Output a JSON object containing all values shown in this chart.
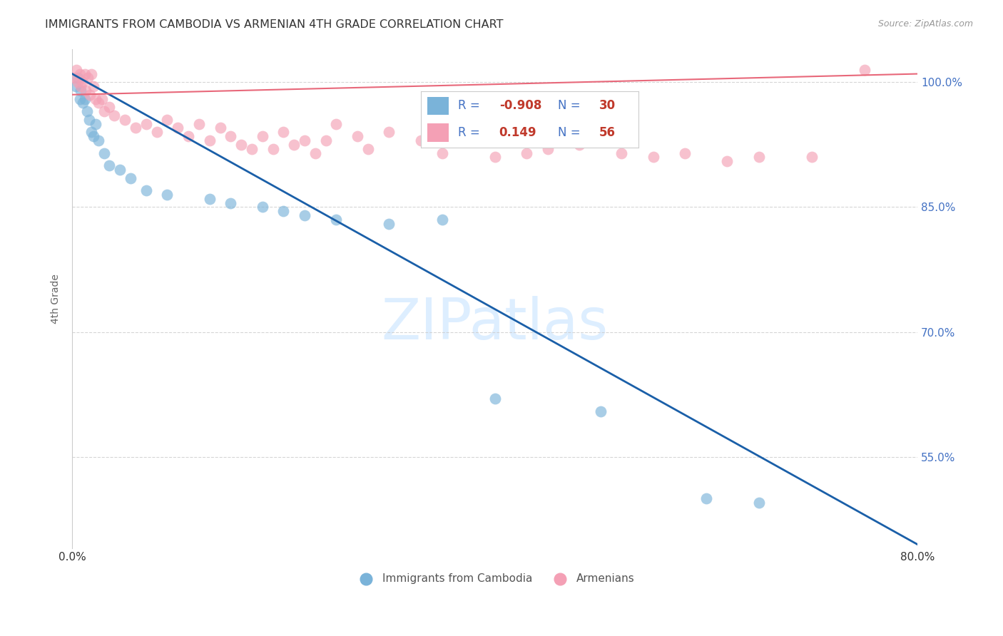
{
  "title": "IMMIGRANTS FROM CAMBODIA VS ARMENIAN 4TH GRADE CORRELATION CHART",
  "source": "Source: ZipAtlas.com",
  "ylabel": "4th Grade",
  "xlim": [
    0.0,
    80.0
  ],
  "ylim": [
    44.0,
    104.0
  ],
  "ytick_positions": [
    55.0,
    70.0,
    85.0,
    100.0
  ],
  "ytick_labels": [
    "55.0%",
    "70.0%",
    "85.0%",
    "100.0%"
  ],
  "xtick_positions": [
    0.0,
    10.0,
    20.0,
    30.0,
    40.0,
    50.0,
    60.0,
    70.0,
    80.0
  ],
  "xtick_labels": [
    "0.0%",
    "",
    "",
    "",
    "",
    "",
    "",
    "",
    "80.0%"
  ],
  "blue_color": "#7ab3d9",
  "pink_color": "#f4a0b5",
  "blue_line_color": "#1a5fa8",
  "pink_line_color": "#e8687a",
  "blue_scatter_x": [
    0.3,
    0.5,
    0.7,
    0.8,
    1.0,
    1.2,
    1.4,
    1.6,
    1.8,
    2.0,
    2.2,
    2.5,
    3.0,
    3.5,
    4.5,
    5.5,
    7.0,
    9.0,
    13.0,
    15.0,
    18.0,
    20.0,
    22.0,
    25.0,
    30.0,
    35.0,
    40.0,
    50.0,
    60.0,
    65.0
  ],
  "blue_scatter_y": [
    99.5,
    100.5,
    98.0,
    99.0,
    97.5,
    98.0,
    96.5,
    95.5,
    94.0,
    93.5,
    95.0,
    93.0,
    91.5,
    90.0,
    89.5,
    88.5,
    87.0,
    86.5,
    86.0,
    85.5,
    85.0,
    84.5,
    84.0,
    83.5,
    83.0,
    83.5,
    62.0,
    60.5,
    50.0,
    49.5
  ],
  "pink_scatter_x": [
    0.2,
    0.4,
    0.5,
    0.7,
    0.8,
    1.0,
    1.2,
    1.3,
    1.5,
    1.7,
    1.8,
    2.0,
    2.2,
    2.5,
    2.8,
    3.0,
    3.5,
    4.0,
    5.0,
    6.0,
    7.0,
    8.0,
    9.0,
    10.0,
    11.0,
    12.0,
    13.0,
    14.0,
    15.0,
    16.0,
    17.0,
    18.0,
    19.0,
    20.0,
    21.0,
    22.0,
    23.0,
    24.0,
    25.0,
    27.0,
    28.0,
    30.0,
    33.0,
    35.0,
    37.0,
    40.0,
    43.0,
    45.0,
    48.0,
    52.0,
    55.0,
    58.0,
    62.0,
    65.0,
    70.0,
    75.0
  ],
  "pink_scatter_y": [
    100.5,
    101.5,
    100.0,
    101.0,
    99.5,
    100.0,
    101.0,
    99.0,
    100.5,
    98.5,
    101.0,
    99.5,
    98.0,
    97.5,
    98.0,
    96.5,
    97.0,
    96.0,
    95.5,
    94.5,
    95.0,
    94.0,
    95.5,
    94.5,
    93.5,
    95.0,
    93.0,
    94.5,
    93.5,
    92.5,
    92.0,
    93.5,
    92.0,
    94.0,
    92.5,
    93.0,
    91.5,
    93.0,
    95.0,
    93.5,
    92.0,
    94.0,
    93.0,
    91.5,
    93.5,
    91.0,
    91.5,
    92.0,
    92.5,
    91.5,
    91.0,
    91.5,
    90.5,
    91.0,
    91.0,
    101.5
  ],
  "blue_line_x": [
    0.0,
    80.0
  ],
  "blue_line_y": [
    101.0,
    44.5
  ],
  "pink_line_x": [
    0.0,
    80.0
  ],
  "pink_line_y": [
    98.5,
    101.0
  ],
  "background_color": "#ffffff",
  "grid_color": "#cccccc",
  "title_color": "#333333",
  "watermark_color": "#ddeeff",
  "legend_blue_R": "-0.908",
  "legend_blue_N": "30",
  "legend_pink_R": "0.149",
  "legend_pink_N": "56",
  "blue_label": "Immigrants from Cambodia",
  "pink_label": "Armenians"
}
